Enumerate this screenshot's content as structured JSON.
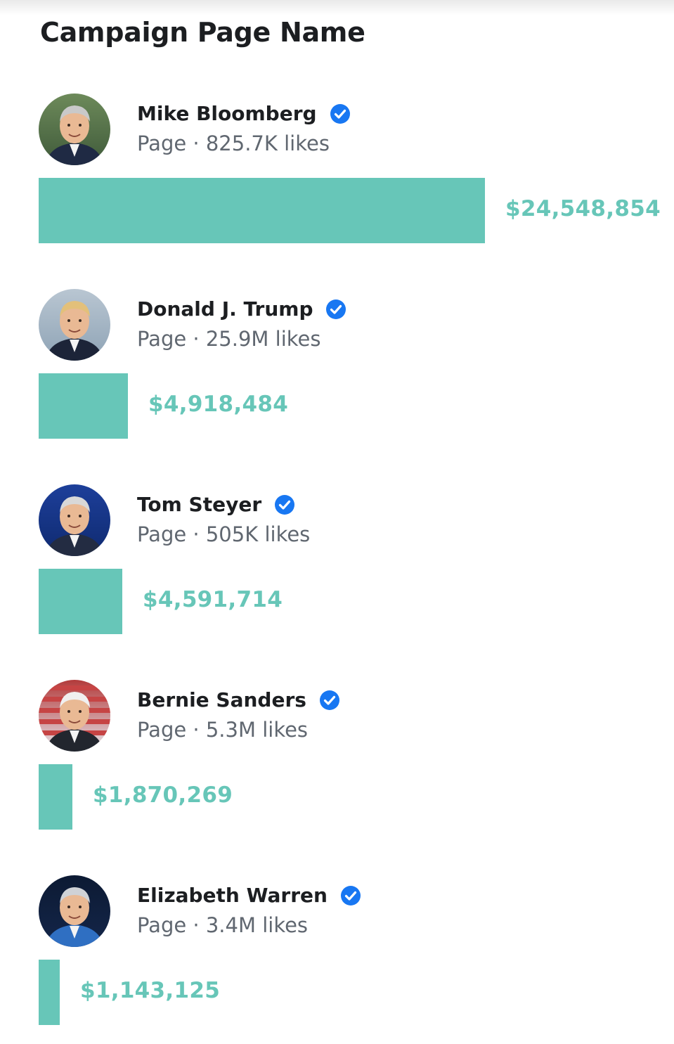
{
  "title": "Campaign Page Name",
  "colors": {
    "bar": "#67c6b8",
    "verified_badge": "#1877f2"
  },
  "chart_data": {
    "type": "bar",
    "orientation": "horizontal",
    "title": "Campaign Page Name",
    "categories": [
      "Mike Bloomberg",
      "Donald J. Trump",
      "Tom Steyer",
      "Bernie Sanders",
      "Elizabeth Warren"
    ],
    "values": [
      24548854,
      4918484,
      4591714,
      1870269,
      1143125
    ],
    "value_labels": [
      "$24,548,854",
      "$4,918,484",
      "$4,591,714",
      "$1,870,269",
      "$1,143,125"
    ],
    "grid": false,
    "legend": "none"
  },
  "pages": [
    {
      "name": "Mike Bloomberg",
      "subtitle": "Page · 825.7K likes",
      "avatar_icon": "person-photo",
      "verified_icon": "verified-badge-icon"
    },
    {
      "name": "Donald J. Trump",
      "subtitle": "Page · 25.9M likes",
      "avatar_icon": "person-photo",
      "verified_icon": "verified-badge-icon"
    },
    {
      "name": "Tom Steyer",
      "subtitle": "Page · 505K likes",
      "avatar_icon": "person-photo",
      "verified_icon": "verified-badge-icon"
    },
    {
      "name": "Bernie Sanders",
      "subtitle": "Page · 5.3M likes",
      "avatar_icon": "person-photo",
      "verified_icon": "verified-badge-icon"
    },
    {
      "name": "Elizabeth Warren",
      "subtitle": "Page · 3.4M likes",
      "avatar_icon": "person-photo",
      "verified_icon": "verified-badge-icon"
    }
  ]
}
